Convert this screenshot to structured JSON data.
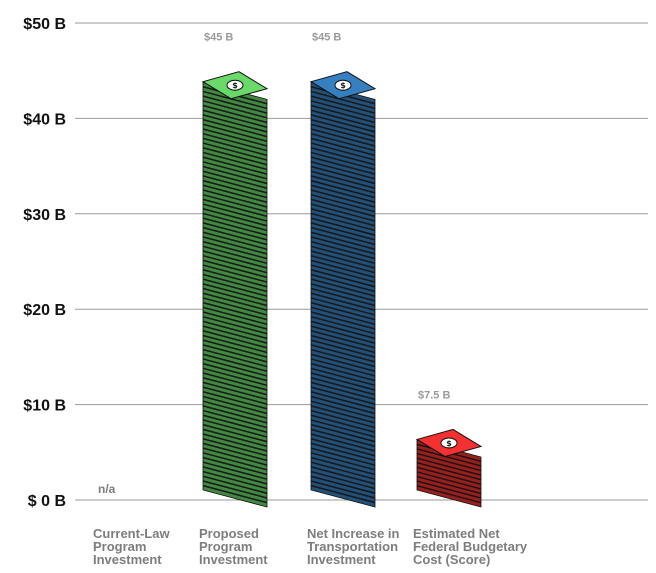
{
  "chart_data": {
    "type": "bar",
    "title": "",
    "xlabel": "",
    "ylabel": "",
    "ylim": [
      0,
      50
    ],
    "y_ticks": [
      {
        "value": 0,
        "label": "$ 0 B"
      },
      {
        "value": 10,
        "label": "$10 B"
      },
      {
        "value": 20,
        "label": "$20 B"
      },
      {
        "value": 30,
        "label": "$30 B"
      },
      {
        "value": 40,
        "label": "$40 B"
      },
      {
        "value": 50,
        "label": "$50 B"
      }
    ],
    "grid": true,
    "categories": [
      [
        "Current-Law",
        "Program",
        "Investment"
      ],
      [
        "Proposed",
        "Program",
        "Investment"
      ],
      [
        "Net Increase in",
        "Transportation",
        "Investment"
      ],
      [
        "Estimated Net",
        "Federal Budgetary",
        "Cost (Score)"
      ]
    ],
    "values": [
      null,
      45,
      45,
      7.5
    ],
    "data_labels": [
      "n/a",
      "$45 B",
      "$45 B",
      "$7.5 B"
    ],
    "colors": [
      "#9a9a9a",
      "#5cbd5c",
      "#2f6fa8",
      "#d42a2a"
    ],
    "icon": "dollar-bill-stack-icon"
  }
}
